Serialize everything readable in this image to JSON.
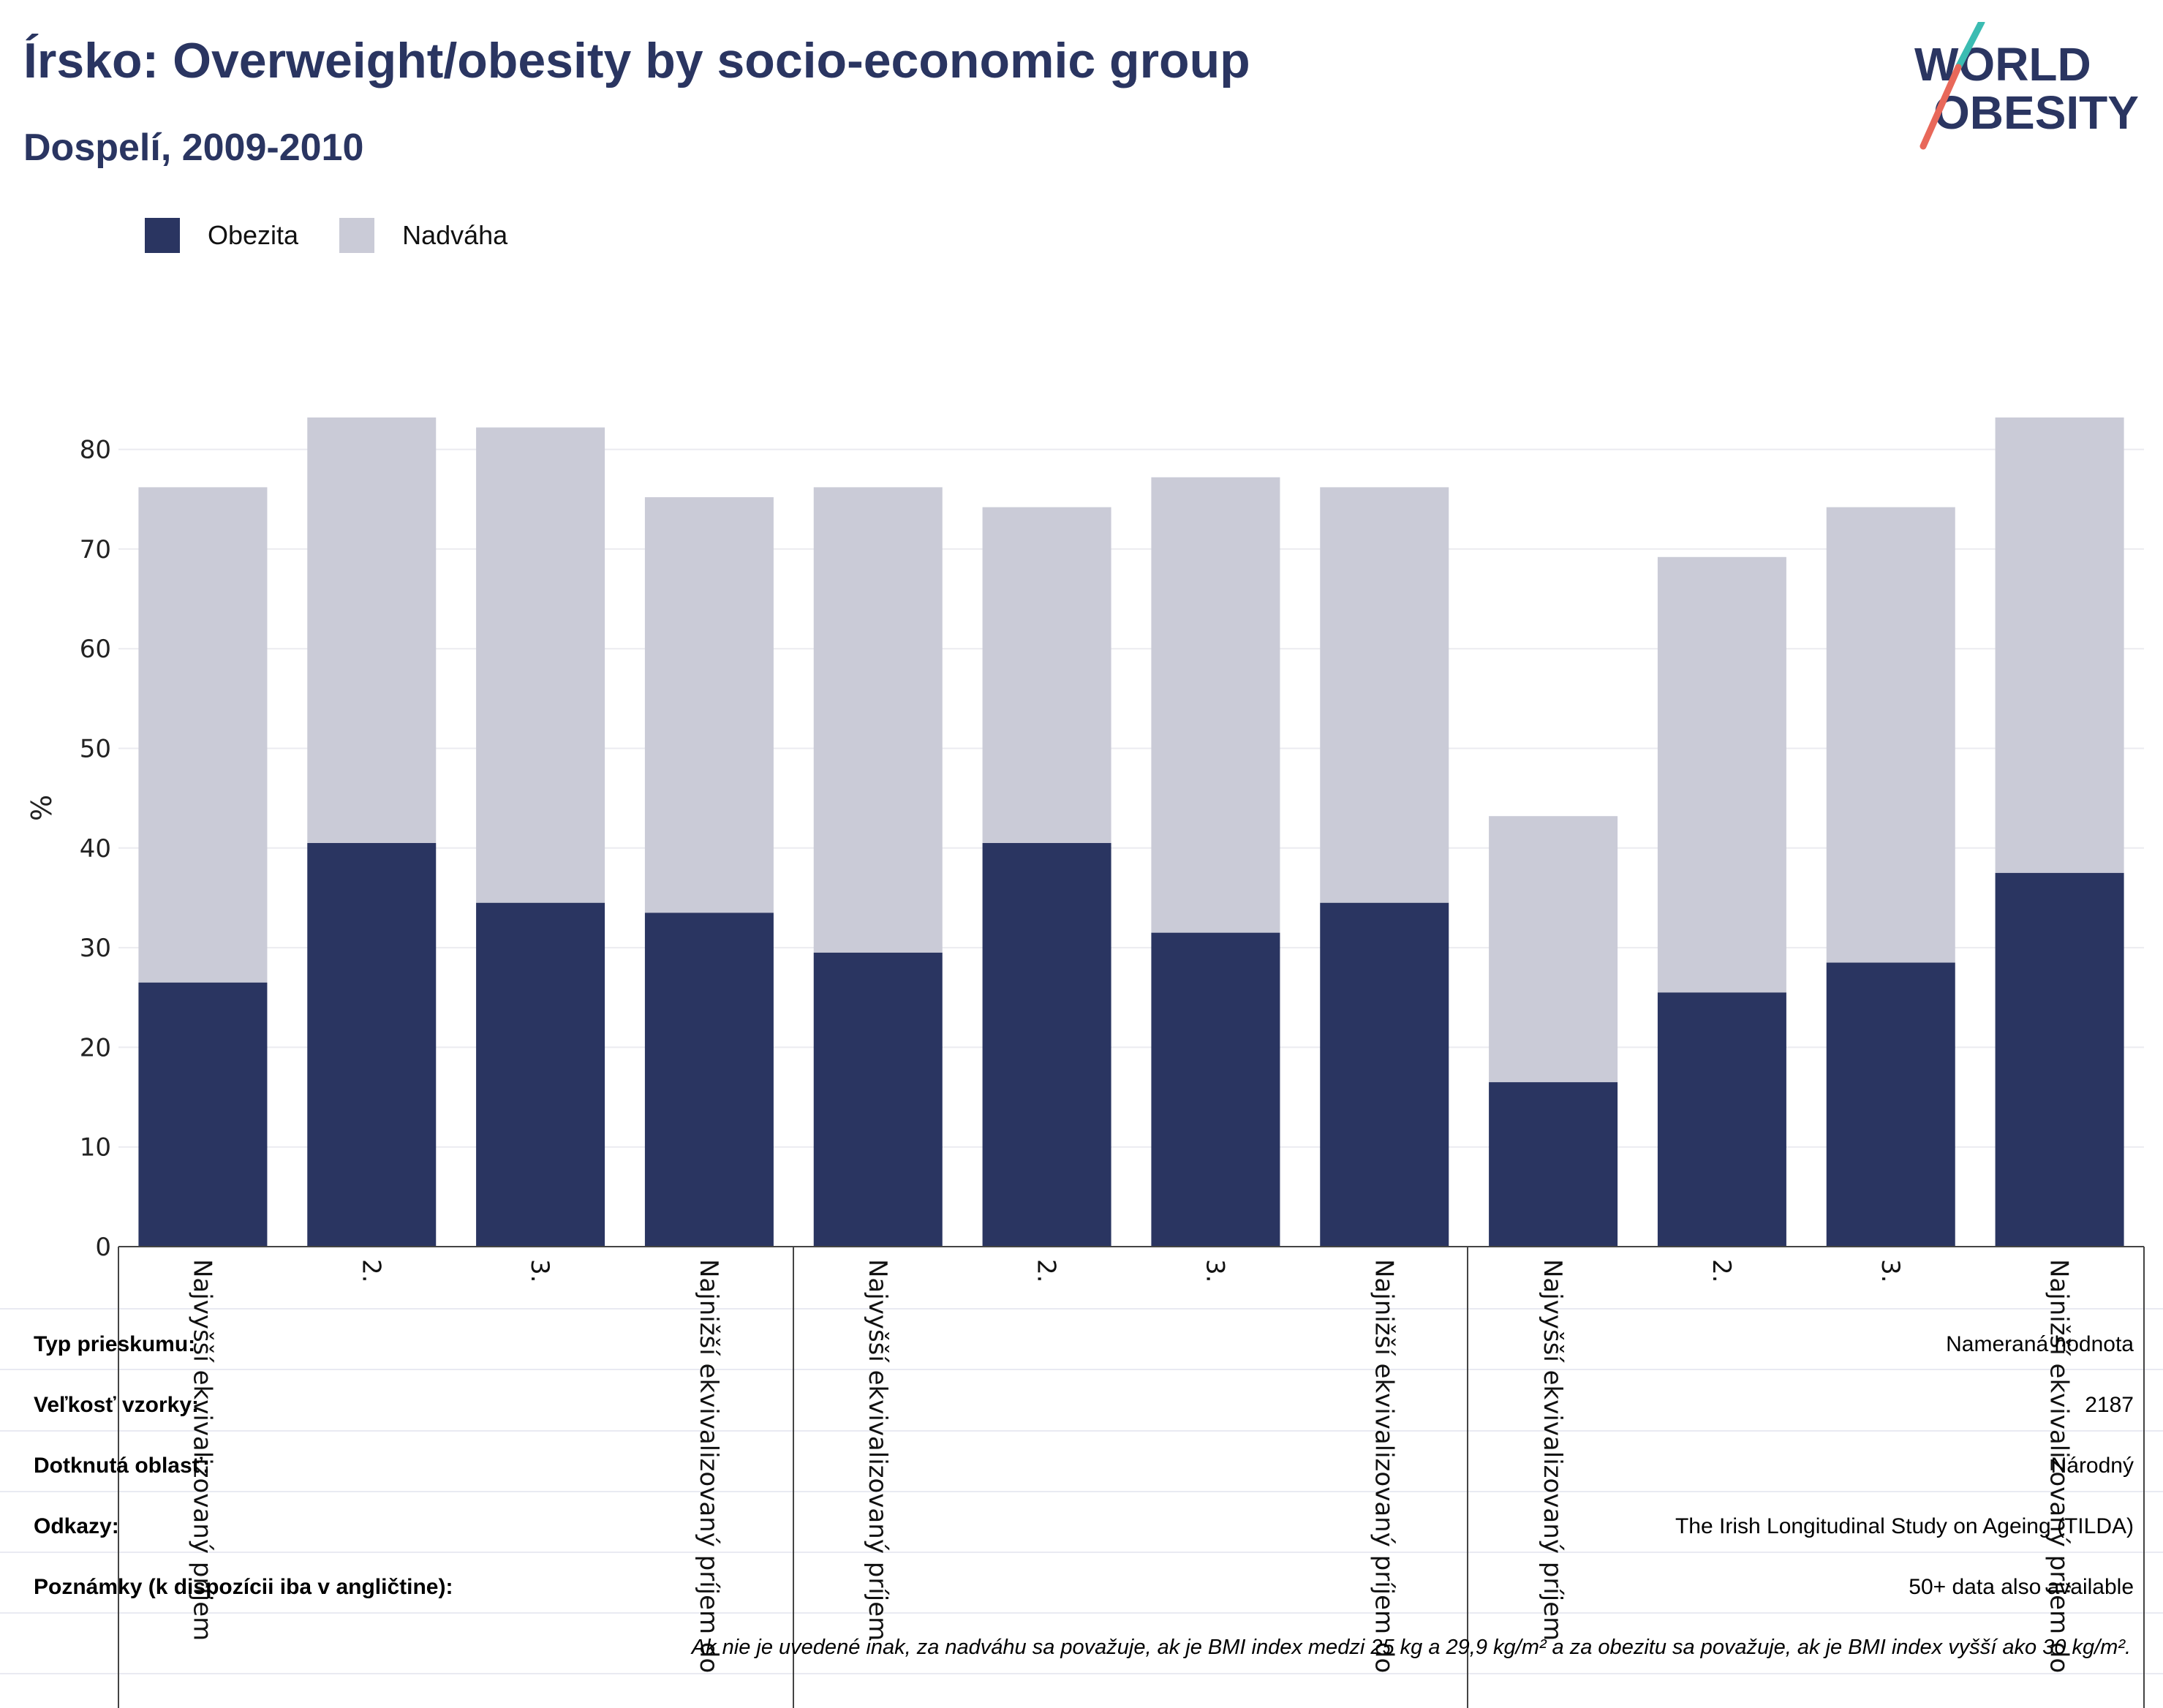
{
  "header": {
    "title": "Írsko: Overweight/obesity by socio-economic group",
    "subtitle": "Dospelí, 2009-2010"
  },
  "logo": {
    "line1": "WORLD",
    "line2": "OBESITY"
  },
  "colors": {
    "obesity": "#2a3561",
    "overweight": "#cacbd7",
    "text": "#2a3561",
    "accent_teal": "#3bbcb2",
    "accent_red": "#e8685a"
  },
  "legend": {
    "obesity": "Obezita",
    "overweight": "Nadváha"
  },
  "chart_data": {
    "type": "bar",
    "stacked": true,
    "ylabel": "%",
    "ylim": [
      0,
      87
    ],
    "yticks": [
      0,
      10,
      20,
      30,
      40,
      50,
      60,
      70,
      80
    ],
    "grid": true,
    "legend_position": "top-left",
    "categories": [
      "Najvyšší ekvivalizovaný príjem",
      "2.",
      "3.",
      "Najnižší ekvivalizovaný príjem do",
      "Najvyšší ekvivalizovaný príjem",
      "2.",
      "3.",
      "Najnižší ekvivalizovaný príjem do",
      "Najvyšší ekvivalizovaný príjem",
      "2.",
      "3.",
      "Najnižší ekvivalizovaný príjem do"
    ],
    "series": [
      {
        "name": "Obezita",
        "values": [
          26.5,
          40.5,
          34.5,
          33.5,
          29.5,
          40.5,
          31.5,
          34.5,
          16.5,
          25.5,
          28.5,
          37.5
        ]
      },
      {
        "name": "Nadváha",
        "values": [
          49.7,
          42.7,
          47.7,
          41.7,
          46.7,
          33.7,
          45.7,
          41.7,
          26.7,
          43.7,
          45.7,
          45.7
        ]
      }
    ]
  },
  "info": {
    "rows": [
      {
        "label": "Typ prieskumu:",
        "value": "Nameraná hodnota"
      },
      {
        "label": "Veľkosť vzorky:",
        "value": "2187"
      },
      {
        "label": "Dotknutá oblasť:",
        "value": "Národný"
      },
      {
        "label": "Odkazy:",
        "value": "The Irish Longitudinal Study on Ageing (TILDA)"
      },
      {
        "label": "Poznámky (k dispozícii iba v angličtine):",
        "value": "50+ data also available"
      }
    ],
    "footnote": "Ak nie je uvedené inak, za nadváhu sa považuje, ak je BMI index medzi 25 kg a 29,9 kg/m² a za obezitu sa považuje, ak je BMI index vyšší ako 30 kg/m²."
  }
}
